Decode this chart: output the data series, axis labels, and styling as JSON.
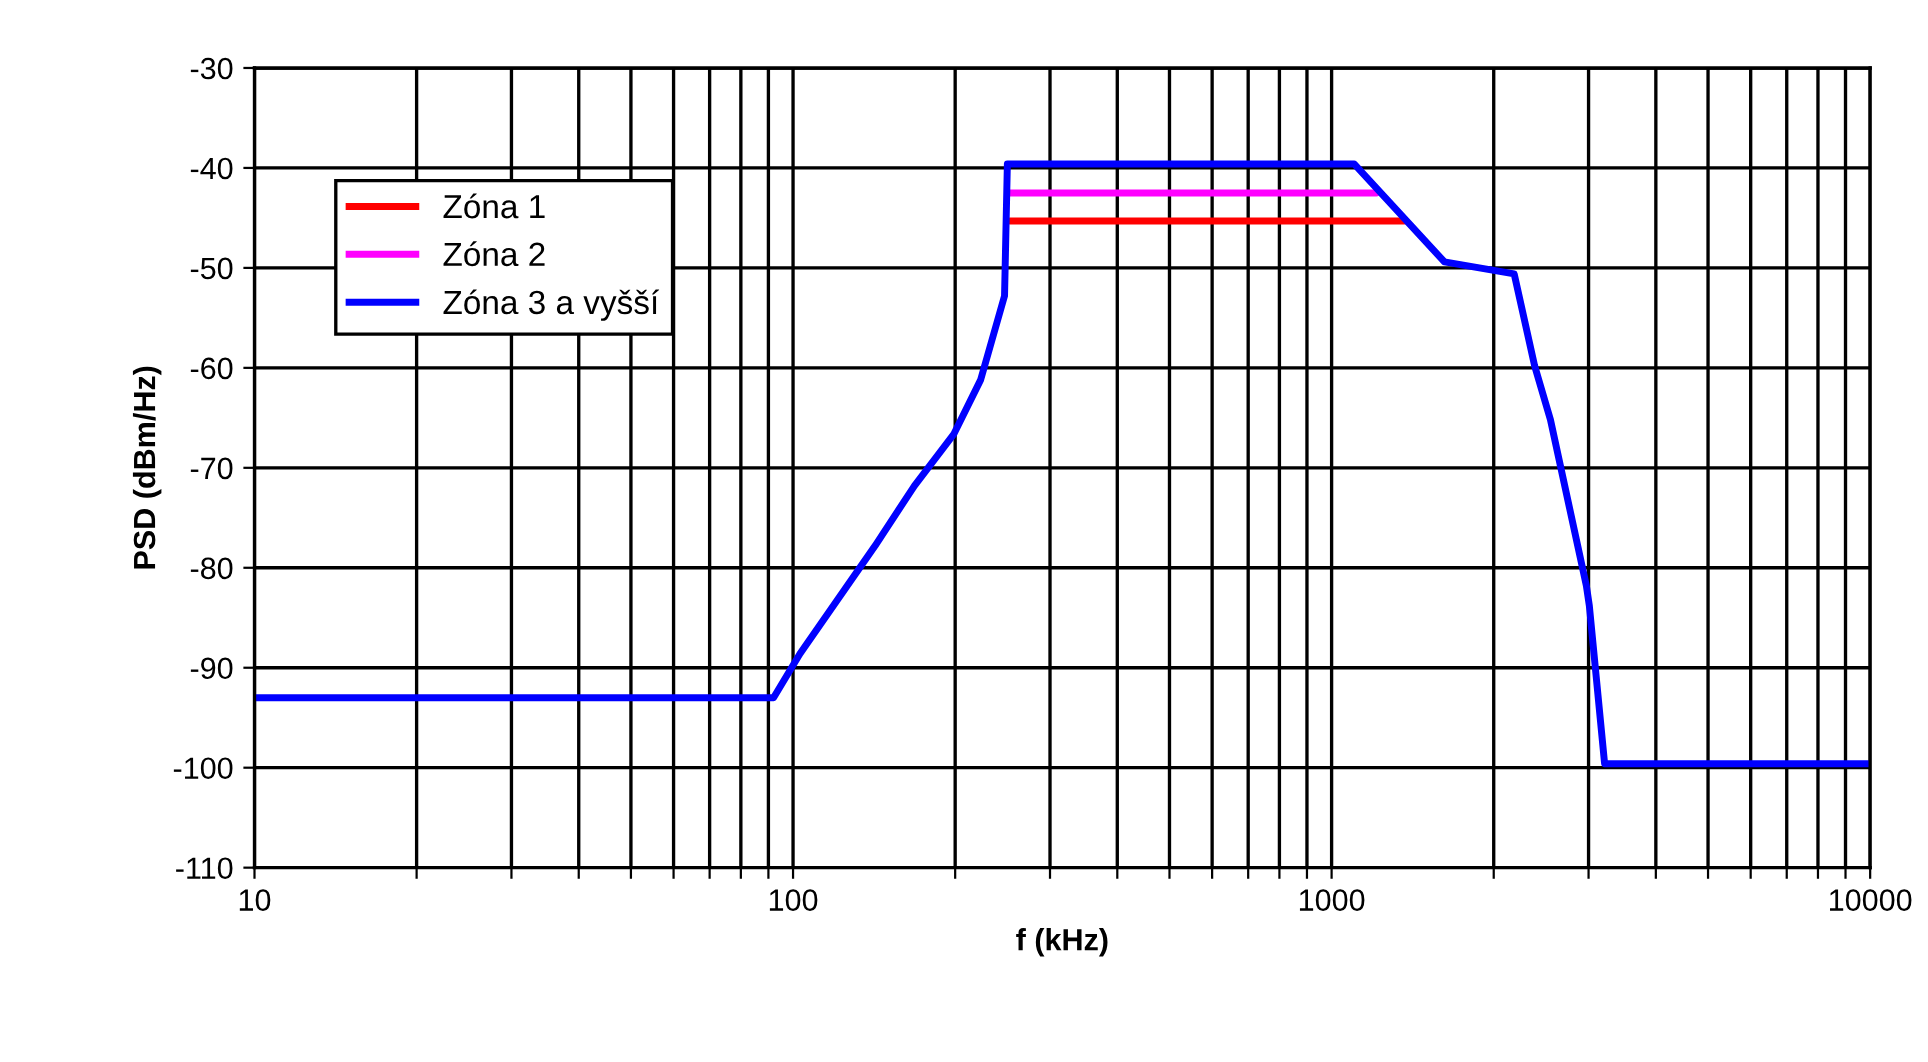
{
  "chart_data": {
    "type": "line",
    "xlabel": "f (kHz)",
    "ylabel": "PSD (dBm/Hz)",
    "log": "x",
    "grid": true,
    "legend": "top left",
    "line_style": "solid",
    "marker": "none",
    "xlim": [
      10,
      10000
    ],
    "ylim": [
      -110,
      -30
    ],
    "xticks": [
      10,
      {
        "value": 20,
        "label": null
      },
      {
        "value": 30,
        "label": null
      },
      {
        "value": 40,
        "label": null
      },
      {
        "value": 50,
        "label": null
      },
      {
        "value": 60,
        "label": null
      },
      {
        "value": 70,
        "label": null
      },
      {
        "value": 80,
        "label": null
      },
      {
        "value": 90,
        "label": null
      },
      100,
      {
        "value": 200,
        "label": null
      },
      {
        "value": 300,
        "label": null
      },
      {
        "value": 400,
        "label": null
      },
      {
        "value": 500,
        "label": null
      },
      {
        "value": 600,
        "label": null
      },
      {
        "value": 700,
        "label": null
      },
      {
        "value": 800,
        "label": null
      },
      {
        "value": 900,
        "label": null
      },
      1000,
      {
        "value": 2000,
        "label": null
      },
      {
        "value": 3000,
        "label": null
      },
      {
        "value": 4000,
        "label": null
      },
      {
        "value": 5000,
        "label": null
      },
      {
        "value": 6000,
        "label": null
      },
      {
        "value": 7000,
        "label": null
      },
      {
        "value": 8000,
        "label": null
      },
      {
        "value": 9000,
        "label": null
      },
      10000
    ],
    "yticks": [
      -110,
      -100,
      -90,
      -80,
      -70,
      -60,
      -50,
      -40,
      -30
    ],
    "series": [
      {
        "name": "Zóna 1",
        "color": "#ff0000",
        "x": [
          253,
          1365
        ],
        "values": [
          -45.3,
          -45.3
        ]
      },
      {
        "name": "Zóna 2",
        "color": "#ff00ff",
        "x": [
          252,
          1211
        ],
        "values": [
          -42.5,
          -42.5
        ]
      },
      {
        "name": "Zóna 3 a vyšší",
        "color": "#0000ff",
        "x": [
          10,
          92,
          103,
          142,
          168,
          199,
          223,
          247,
          250,
          1101,
          1620,
          2183,
          2382,
          2549,
          2972,
          3010,
          3213,
          10000
        ],
        "values": [
          -93,
          -93,
          -88.6,
          -77.8,
          -71.8,
          -66.6,
          -61.2,
          -52.8,
          -39.6,
          -39.6,
          -49.4,
          -50.6,
          -59.8,
          -65.2,
          -81.8,
          -83.8,
          -99.6,
          -99.6
        ]
      }
    ]
  }
}
